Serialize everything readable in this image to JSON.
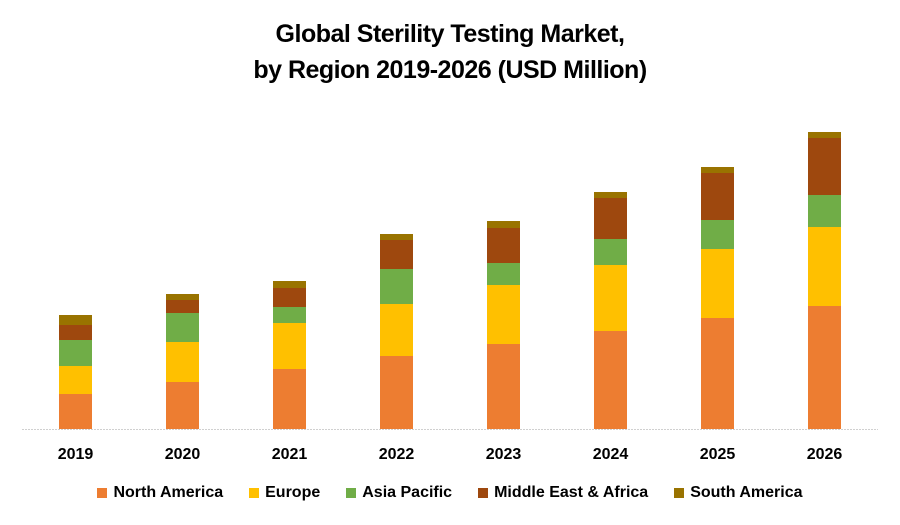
{
  "chart_data": {
    "type": "bar",
    "stacked": true,
    "title": "Global Sterility Testing Market,",
    "subtitle": "by Region 2019-2026 (USD Million)",
    "xlabel": "",
    "ylabel": "",
    "y_axis_visible": false,
    "value_note": "relative units estimated from bar heights (no y-axis shown)",
    "grid": false,
    "legend_position": "bottom",
    "categories": [
      "2019",
      "2020",
      "2021",
      "2022",
      "2023",
      "2024",
      "2025",
      "2026"
    ],
    "series": [
      {
        "name": "North America",
        "color": "#ED7D31",
        "values": [
          35,
          47,
          60,
          73,
          85,
          98,
          111,
          123
        ]
      },
      {
        "name": "Europe",
        "color": "#FFC000",
        "values": [
          28,
          40,
          46,
          52,
          59,
          66,
          69,
          79
        ]
      },
      {
        "name": "Asia Pacific",
        "color": "#70AD47",
        "values": [
          26,
          29,
          16,
          35,
          22,
          26,
          29,
          32
        ]
      },
      {
        "name": "Middle East & Africa",
        "color": "#9E480E",
        "values": [
          15,
          13,
          19,
          29,
          35,
          41,
          47,
          57
        ]
      },
      {
        "name": "South America",
        "color": "#997300",
        "values": [
          10,
          6,
          7,
          6,
          7,
          6,
          6,
          6
        ]
      }
    ],
    "ylim": [
      0,
      300
    ]
  }
}
